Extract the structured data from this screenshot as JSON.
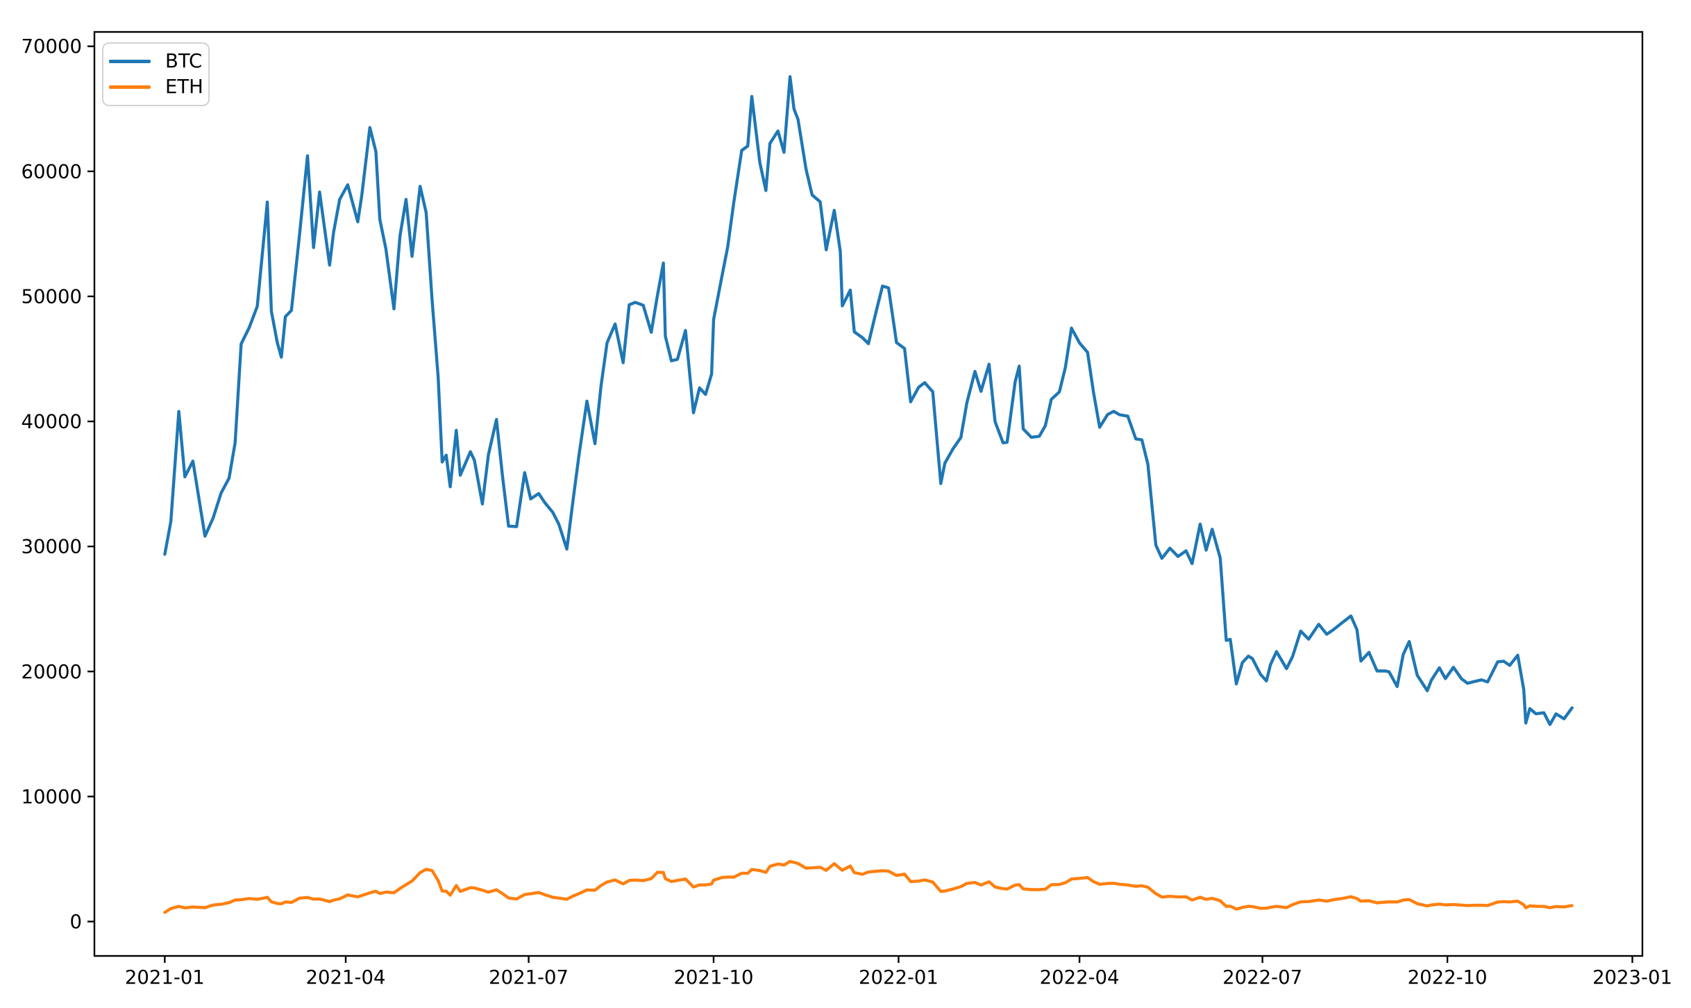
{
  "chart_data": {
    "type": "line",
    "title": "",
    "xlabel": "",
    "ylabel": "",
    "grid": false,
    "legend_position": "upper-left",
    "xlim": [
      "2020-11-27",
      "2023-01-06"
    ],
    "ylim": [
      -2750,
      71150
    ],
    "xticks": [
      {
        "value": "2021-01-01",
        "label": "2021-01"
      },
      {
        "value": "2021-04-01",
        "label": "2021-04"
      },
      {
        "value": "2021-07-01",
        "label": "2021-07"
      },
      {
        "value": "2021-10-01",
        "label": "2021-10"
      },
      {
        "value": "2022-01-01",
        "label": "2022-01"
      },
      {
        "value": "2022-04-01",
        "label": "2022-04"
      },
      {
        "value": "2022-07-01",
        "label": "2022-07"
      },
      {
        "value": "2022-10-01",
        "label": "2022-10"
      },
      {
        "value": "2023-01-01",
        "label": "2023-01"
      }
    ],
    "yticks": [
      {
        "value": 0,
        "label": "0"
      },
      {
        "value": 10000,
        "label": "10000"
      },
      {
        "value": 20000,
        "label": "20000"
      },
      {
        "value": 30000,
        "label": "30000"
      },
      {
        "value": 40000,
        "label": "40000"
      },
      {
        "value": 50000,
        "label": "50000"
      },
      {
        "value": 60000,
        "label": "60000"
      },
      {
        "value": 70000,
        "label": "70000"
      }
    ],
    "x": [
      "2021-01-01",
      "2021-01-04",
      "2021-01-08",
      "2021-01-11",
      "2021-01-15",
      "2021-01-21",
      "2021-01-25",
      "2021-01-29",
      "2021-02-02",
      "2021-02-05",
      "2021-02-08",
      "2021-02-12",
      "2021-02-16",
      "2021-02-21",
      "2021-02-23",
      "2021-02-26",
      "2021-02-28",
      "2021-03-02",
      "2021-03-05",
      "2021-03-09",
      "2021-03-13",
      "2021-03-16",
      "2021-03-19",
      "2021-03-24",
      "2021-03-26",
      "2021-03-29",
      "2021-04-02",
      "2021-04-07",
      "2021-04-09",
      "2021-04-13",
      "2021-04-16",
      "2021-04-18",
      "2021-04-21",
      "2021-04-25",
      "2021-04-28",
      "2021-05-01",
      "2021-05-04",
      "2021-05-08",
      "2021-05-11",
      "2021-05-14",
      "2021-05-17",
      "2021-05-19",
      "2021-05-21",
      "2021-05-23",
      "2021-05-26",
      "2021-05-28",
      "2021-06-02",
      "2021-06-04",
      "2021-06-08",
      "2021-06-11",
      "2021-06-15",
      "2021-06-18",
      "2021-06-21",
      "2021-06-25",
      "2021-06-29",
      "2021-07-02",
      "2021-07-06",
      "2021-07-09",
      "2021-07-13",
      "2021-07-16",
      "2021-07-20",
      "2021-07-23",
      "2021-07-26",
      "2021-07-30",
      "2021-08-03",
      "2021-08-06",
      "2021-08-09",
      "2021-08-13",
      "2021-08-17",
      "2021-08-20",
      "2021-08-23",
      "2021-08-27",
      "2021-08-31",
      "2021-09-03",
      "2021-09-06",
      "2021-09-07",
      "2021-09-10",
      "2021-09-13",
      "2021-09-17",
      "2021-09-21",
      "2021-09-24",
      "2021-09-27",
      "2021-09-30",
      "2021-10-01",
      "2021-10-05",
      "2021-10-08",
      "2021-10-11",
      "2021-10-15",
      "2021-10-18",
      "2021-10-20",
      "2021-10-24",
      "2021-10-27",
      "2021-10-29",
      "2021-11-02",
      "2021-11-05",
      "2021-11-08",
      "2021-11-10",
      "2021-11-12",
      "2021-11-16",
      "2021-11-19",
      "2021-11-23",
      "2021-11-26",
      "2021-11-30",
      "2021-12-03",
      "2021-12-04",
      "2021-12-08",
      "2021-12-10",
      "2021-12-14",
      "2021-12-17",
      "2021-12-21",
      "2021-12-24",
      "2021-12-27",
      "2021-12-31",
      "2022-01-04",
      "2022-01-07",
      "2022-01-11",
      "2022-01-14",
      "2022-01-18",
      "2022-01-22",
      "2022-01-24",
      "2022-01-28",
      "2022-02-01",
      "2022-02-04",
      "2022-02-08",
      "2022-02-11",
      "2022-02-15",
      "2022-02-18",
      "2022-02-22",
      "2022-02-24",
      "2022-02-28",
      "2022-03-02",
      "2022-03-04",
      "2022-03-08",
      "2022-03-12",
      "2022-03-15",
      "2022-03-18",
      "2022-03-22",
      "2022-03-25",
      "2022-03-28",
      "2022-04-01",
      "2022-04-05",
      "2022-04-08",
      "2022-04-11",
      "2022-04-15",
      "2022-04-18",
      "2022-04-21",
      "2022-04-25",
      "2022-04-29",
      "2022-05-02",
      "2022-05-05",
      "2022-05-09",
      "2022-05-12",
      "2022-05-16",
      "2022-05-20",
      "2022-05-24",
      "2022-05-27",
      "2022-05-31",
      "2022-06-03",
      "2022-06-06",
      "2022-06-10",
      "2022-06-13",
      "2022-06-15",
      "2022-06-18",
      "2022-06-21",
      "2022-06-24",
      "2022-06-26",
      "2022-06-30",
      "2022-07-03",
      "2022-07-05",
      "2022-07-08",
      "2022-07-13",
      "2022-07-16",
      "2022-07-20",
      "2022-07-24",
      "2022-07-29",
      "2022-08-02",
      "2022-08-05",
      "2022-08-10",
      "2022-08-14",
      "2022-08-17",
      "2022-08-19",
      "2022-08-23",
      "2022-08-27",
      "2022-08-31",
      "2022-09-02",
      "2022-09-06",
      "2022-09-09",
      "2022-09-12",
      "2022-09-16",
      "2022-09-21",
      "2022-09-23",
      "2022-09-27",
      "2022-09-30",
      "2022-10-04",
      "2022-10-08",
      "2022-10-11",
      "2022-10-14",
      "2022-10-18",
      "2022-10-21",
      "2022-10-26",
      "2022-10-29",
      "2022-11-01",
      "2022-11-05",
      "2022-11-08",
      "2022-11-09",
      "2022-11-11",
      "2022-11-14",
      "2022-11-18",
      "2022-11-21",
      "2022-11-24",
      "2022-11-28",
      "2022-12-02"
    ],
    "series": [
      {
        "name": "BTC",
        "color": "#1f77b4",
        "values": [
          29374,
          31989,
          40797,
          35567,
          36825,
          30825,
          32259,
          34270,
          35467,
          38290,
          46196,
          47504,
          49200,
          57539,
          48824,
          46300,
          45137,
          48378,
          48882,
          54884,
          61243,
          53907,
          58346,
          52508,
          55137,
          57750,
          58926,
          55963,
          58083,
          63503,
          61572,
          56150,
          53798,
          49004,
          54824,
          57750,
          53200,
          58803,
          56704,
          49670,
          43538,
          36753,
          37304,
          34770,
          39294,
          35697,
          37575,
          36895,
          33402,
          37338,
          40158,
          35615,
          31622,
          31592,
          35907,
          33798,
          34235,
          33515,
          32729,
          31783,
          29790,
          33593,
          37276,
          41626,
          38214,
          42838,
          46284,
          47793,
          44696,
          49322,
          49518,
          49291,
          47130,
          50025,
          52664,
          46811,
          44843,
          44963,
          47268,
          40693,
          42686,
          42161,
          43791,
          48145,
          51495,
          53949,
          57485,
          61672,
          62026,
          65993,
          60693,
          58470,
          62228,
          63226,
          61522,
          67567,
          64995,
          64155,
          60161,
          58115,
          57565,
          53726,
          56882,
          53601,
          49243,
          50504,
          47159,
          46702,
          46216,
          48896,
          50822,
          50679,
          46306,
          45833,
          41566,
          42735,
          43100,
          42375,
          35030,
          36654,
          37784,
          38722,
          41500,
          44000,
          42408,
          44576,
          39974,
          38286,
          38332,
          43160,
          44421,
          39400,
          38730,
          38814,
          39664,
          41768,
          42364,
          44331,
          47465,
          46283,
          45521,
          42282,
          39533,
          40552,
          40801,
          40527,
          40426,
          38605,
          38529,
          36575,
          30100,
          29047,
          29862,
          29200,
          29655,
          28628,
          31792,
          29700,
          31373,
          29083,
          22487,
          22573,
          19010,
          20710,
          21231,
          21028,
          19785,
          19242,
          20548,
          21591,
          20226,
          21208,
          23231,
          22582,
          23773,
          22978,
          23306,
          23947,
          24441,
          23342,
          20838,
          21529,
          20041,
          20050,
          19970,
          18790,
          21360,
          22395,
          19701,
          18462,
          19297,
          20296,
          19432,
          20336,
          19417,
          19051,
          19180,
          19330,
          19166,
          20775,
          20817,
          20485,
          21300,
          18540,
          15880,
          17030,
          16618,
          16700,
          15760,
          16608,
          16216,
          17090
        ]
      },
      {
        "name": "ETH",
        "color": "#ff7f0e",
        "values": [
          730,
          1041,
          1217,
          1090,
          1171,
          1111,
          1317,
          1380,
          1512,
          1718,
          1750,
          1840,
          1781,
          1938,
          1578,
          1446,
          1420,
          1570,
          1528,
          1870,
          1924,
          1790,
          1808,
          1593,
          1712,
          1817,
          2133,
          1977,
          2088,
          2299,
          2422,
          2240,
          2357,
          2307,
          2648,
          2945,
          3240,
          3910,
          4178,
          4075,
          3282,
          2438,
          2431,
          2110,
          2888,
          2412,
          2706,
          2688,
          2507,
          2354,
          2543,
          2234,
          1886,
          1809,
          2166,
          2226,
          2322,
          2146,
          1940,
          1877,
          1786,
          2034,
          2231,
          2532,
          2510,
          2888,
          3163,
          3323,
          3012,
          3287,
          3320,
          3273,
          3434,
          3936,
          3928,
          3425,
          3209,
          3287,
          3400,
          2764,
          2928,
          2931,
          3001,
          3310,
          3518,
          3561,
          3546,
          3868,
          3852,
          4167,
          4082,
          3931,
          4417,
          4600,
          4520,
          4810,
          4731,
          4648,
          4267,
          4294,
          4340,
          4098,
          4631,
          4227,
          4107,
          4439,
          3913,
          3782,
          3960,
          4024,
          4063,
          4037,
          3683,
          3790,
          3196,
          3238,
          3330,
          3159,
          2406,
          2440,
          2598,
          2793,
          3058,
          3122,
          2920,
          3185,
          2763,
          2632,
          2598,
          2920,
          2952,
          2616,
          2555,
          2560,
          2590,
          2946,
          2968,
          3105,
          3402,
          3450,
          3521,
          3192,
          2980,
          3045,
          3062,
          2987,
          2926,
          2817,
          2861,
          2749,
          2228,
          1960,
          2022,
          1962,
          1978,
          1725,
          1942,
          1775,
          1860,
          1663,
          1206,
          1233,
          995,
          1125,
          1221,
          1198,
          1057,
          1068,
          1135,
          1217,
          1114,
          1355,
          1576,
          1598,
          1723,
          1632,
          1737,
          1852,
          1984,
          1834,
          1633,
          1662,
          1495,
          1554,
          1577,
          1563,
          1717,
          1759,
          1432,
          1246,
          1328,
          1400,
          1329,
          1363,
          1312,
          1283,
          1297,
          1311,
          1283,
          1566,
          1590,
          1572,
          1629,
          1334,
          1099,
          1256,
          1221,
          1211,
          1108,
          1203,
          1170,
          1280
        ]
      }
    ]
  }
}
